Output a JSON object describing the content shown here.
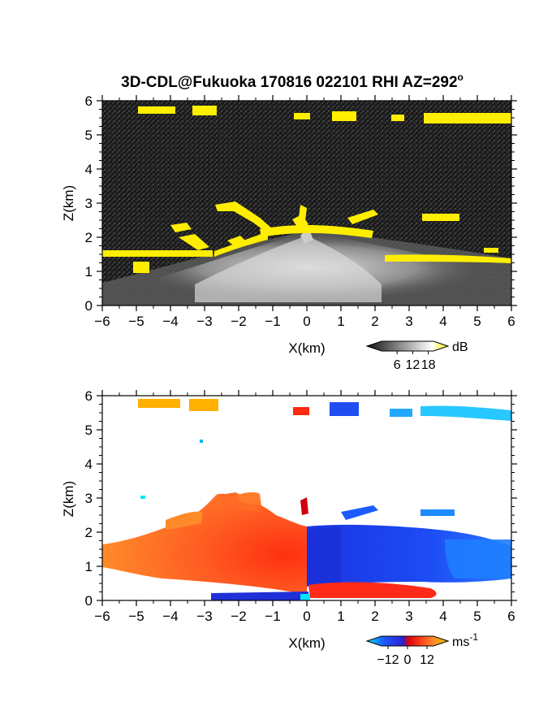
{
  "figure": {
    "title": "3D-CDL@Fukuoka 170816 022101 RHI AZ=292",
    "title_degree": "o"
  },
  "chart_data": [
    {
      "type": "heatmap",
      "name": "reflectivity-panel",
      "xlabel": "X(km)",
      "ylabel": "Z(km)",
      "xlim": [
        -6,
        6
      ],
      "ylim": [
        0,
        6
      ],
      "x_ticks": [
        "-6",
        "-5",
        "-4",
        "-3",
        "-2",
        "-1",
        "0",
        "1",
        "2",
        "3",
        "4",
        "5",
        "6"
      ],
      "y_ticks": [
        "0",
        "1",
        "2",
        "3",
        "4",
        "5",
        "6"
      ],
      "colorbar": {
        "unit": "dB",
        "tick_labels": [
          "6",
          "12",
          "18"
        ],
        "range": [
          0,
          20
        ],
        "colors": [
          "#111111",
          "#ffffff",
          "#ffee00"
        ]
      },
      "features": [
        {
          "kind": "cloud-layer",
          "x": [
            -5.4,
            -4.0
          ],
          "z": 5.65
        },
        {
          "kind": "cloud-layer",
          "x": [
            -3.3,
            -2.6
          ],
          "z": 5.6
        },
        {
          "kind": "cloud-layer",
          "x": [
            -0.4,
            0.1
          ],
          "z": 5.5
        },
        {
          "kind": "cloud-layer",
          "x": [
            0.8,
            1.5
          ],
          "z": 5.5
        },
        {
          "kind": "cloud-layer",
          "x": [
            2.5,
            2.9
          ],
          "z": 5.45
        },
        {
          "kind": "cloud-layer",
          "x": [
            3.5,
            6.0
          ],
          "z": 5.45
        },
        {
          "kind": "cloud-layer",
          "x": [
            -6.0,
            -2.0
          ],
          "z": 1.55
        },
        {
          "kind": "cloud-layer",
          "x": [
            -1.5,
            2.2
          ],
          "z": 2.2
        },
        {
          "kind": "cloud-layer",
          "x": [
            2.3,
            6.0
          ],
          "z": 1.4
        },
        {
          "kind": "cloud-layer",
          "x": [
            3.5,
            4.6
          ],
          "z": 2.6
        }
      ]
    },
    {
      "type": "heatmap",
      "name": "velocity-panel",
      "xlabel": "X(km)",
      "ylabel": "Z(km)",
      "xlim": [
        -6,
        6
      ],
      "ylim": [
        0,
        6
      ],
      "x_ticks": [
        "-6",
        "-5",
        "-4",
        "-3",
        "-2",
        "-1",
        "0",
        "1",
        "2",
        "3",
        "4",
        "5",
        "6"
      ],
      "y_ticks": [
        "0",
        "1",
        "2",
        "3",
        "4",
        "5",
        "6"
      ],
      "colorbar": {
        "unit": "ms",
        "unit_exponent": "-1",
        "tick_labels": [
          "−12",
          "0",
          "12"
        ],
        "range": [
          -16,
          16
        ],
        "colors": [
          "#00e5ff",
          "#1e5bff",
          "#2a1fd0",
          "#d00010",
          "#ff3a1a",
          "#ff8a2a",
          "#ffc400"
        ]
      },
      "features": [
        {
          "kind": "positive-velocity-region",
          "x": [
            -6.0,
            0.0
          ],
          "z": [
            0.5,
            3.0
          ]
        },
        {
          "kind": "negative-velocity-region",
          "x": [
            0.0,
            6.0
          ],
          "z": [
            0.3,
            2.2
          ]
        },
        {
          "kind": "cloud-layer",
          "x": [
            -5.0,
            -3.2
          ],
          "z": 5.7
        },
        {
          "kind": "cloud-layer",
          "x": [
            0.8,
            1.6
          ],
          "z": 5.55
        },
        {
          "kind": "cloud-layer",
          "x": [
            2.5,
            6.0
          ],
          "z": 5.45
        }
      ]
    }
  ]
}
